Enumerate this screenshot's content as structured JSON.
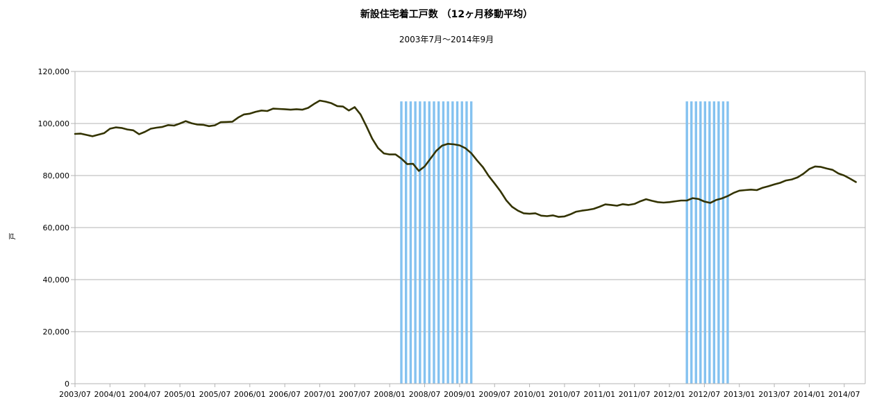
{
  "chart_data": {
    "type": "line",
    "title": "新設住宅着工戸数 （12ヶ月移動平均）",
    "subtitle": "2003年7月～2014年9月",
    "ylabel": "戸",
    "xlabel": "",
    "ylim": [
      0,
      120000
    ],
    "y_ticks": [
      "0",
      "20,000",
      "40,000",
      "60,000",
      "80,000",
      "100,000",
      "120,000"
    ],
    "x_ticks": [
      "2003/07",
      "2004/01",
      "2004/07",
      "2005/01",
      "2005/07",
      "2006/01",
      "2006/07",
      "2007/01",
      "2007/07",
      "2008/01",
      "2008/07",
      "2009/01",
      "2009/07",
      "2010/01",
      "2010/07",
      "2011/01",
      "2011/07",
      "2012/01",
      "2012/07",
      "2013/01",
      "2013/07",
      "2014/01",
      "2014/07"
    ],
    "grid": true,
    "line_color": "#333300",
    "shade_color": "#84c2f0",
    "shaded_periods": [
      {
        "start": "2008/03",
        "end": "2009/03",
        "top": 108500
      },
      {
        "start": "2012/04",
        "end": "2012/11",
        "top": 108500
      }
    ],
    "series": [
      {
        "start": "2003/07",
        "values": [
          96000,
          96100,
          95600,
          95100,
          95700,
          96300,
          98000,
          98500,
          98300,
          97700,
          97400,
          95900,
          96800,
          98000,
          98400,
          98700,
          99400,
          99200,
          100000,
          100900,
          100100,
          99600,
          99500,
          99000,
          99300,
          100500,
          100600,
          100700,
          102300,
          103500,
          103800,
          104500,
          105000,
          104800,
          105700,
          105600,
          105500,
          105300,
          105500,
          105300,
          106000,
          107500,
          108800,
          108400,
          107800,
          106700,
          106500,
          105000,
          106300,
          103500,
          99000,
          94200,
          90600,
          88500,
          88100,
          88100,
          86500,
          84400,
          84500,
          81800,
          83500,
          86500,
          89500,
          91500,
          92200,
          92000,
          91600,
          90500,
          88600,
          85800,
          83200,
          79800,
          77000,
          74000,
          70500,
          68000,
          66500,
          65500,
          65300,
          65500,
          64600,
          64400,
          64700,
          64100,
          64300,
          65100,
          66100,
          66500,
          66800,
          67200,
          68000,
          68900,
          68700,
          68400,
          69000,
          68700,
          69100,
          70100,
          70900,
          70300,
          69800,
          69600,
          69800,
          70100,
          70400,
          70400,
          71300,
          71000,
          70000,
          69500,
          70600,
          71200,
          72100,
          73300,
          74200,
          74400,
          74600,
          74400,
          75300,
          75900,
          76600,
          77200,
          78100,
          78500,
          79300,
          80700,
          82500,
          83500,
          83300,
          82700,
          82200,
          80800,
          80000,
          78800,
          77500
        ]
      }
    ]
  }
}
